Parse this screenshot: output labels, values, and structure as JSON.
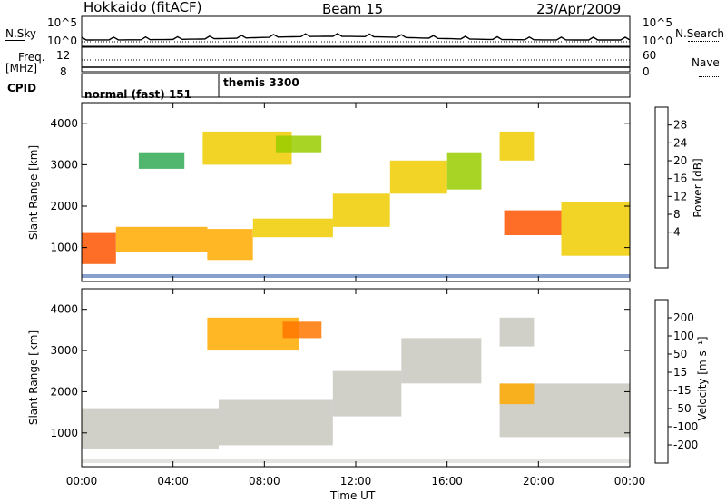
{
  "header": {
    "station": "Hokkaido (fitACF)",
    "beam": "Beam 15",
    "date": "23/Apr/2009"
  },
  "summary": {
    "nsky_label": "N.Sky",
    "nsky_ticks": [
      "10^5",
      "10^0"
    ],
    "nsearch_label": "N.Search",
    "nsearch_ticks": [
      "10^5",
      "10^0"
    ],
    "freq_label": "Freq.",
    "freq_unit": "[MHz]",
    "freq_ticks": [
      "12",
      "8"
    ],
    "nave_label": "Nave",
    "nave_ticks": [
      "60",
      "0"
    ],
    "cpid_label": "CPID",
    "cpid_segments": [
      {
        "label": "normal (fast) 151",
        "start_hour": 0,
        "end_hour": 6
      },
      {
        "label": "themis 3300",
        "start_hour": 6,
        "end_hour": 24
      }
    ]
  },
  "axes": {
    "xlabel": "Time UT",
    "xticks": [
      "00:00",
      "04:00",
      "08:00",
      "12:00",
      "16:00",
      "20:00",
      "00:00"
    ],
    "xlim_hours": [
      0,
      24
    ],
    "ylabel": "Slant Range [km]",
    "yticks": [
      1000,
      2000,
      3000,
      4000
    ],
    "ylim_km": [
      180,
      4500
    ]
  },
  "colorbars": {
    "power": {
      "label": "Power [dB]",
      "ticks": [
        "28",
        "24",
        "20",
        "16",
        "12",
        "8",
        "4"
      ],
      "colors": [
        "#ee0000",
        "#ff5500",
        "#ffaa00",
        "#eecc00",
        "#99cc00",
        "#33aa55",
        "#1f7f6a",
        "#114499",
        "#0000ff"
      ]
    },
    "velocity": {
      "label": "Velocity [m s⁻¹]",
      "ticks": [
        "200",
        "100",
        "50",
        "15",
        "-15",
        "-50",
        "-100",
        "-200"
      ],
      "colors": [
        "#0000cc",
        "#3366aa",
        "#117744",
        "#55cc22",
        "#c8c8c0",
        "#ffaa00",
        "#ff7700",
        "#ff3300",
        "#ee0000"
      ]
    }
  },
  "chart_data": [
    {
      "type": "heatmap",
      "name": "Power",
      "xlabel": "Time UT",
      "ylabel": "Slant Range [km]",
      "xlim": [
        0,
        24
      ],
      "ylim": [
        180,
        4500
      ],
      "bands": [
        {
          "t0": 0.0,
          "t1": 1.5,
          "r0": 600,
          "r1": 1350,
          "db": 26
        },
        {
          "t0": 1.5,
          "t1": 5.5,
          "r0": 900,
          "r1": 1500,
          "db": 24
        },
        {
          "t0": 5.5,
          "t1": 7.5,
          "r0": 700,
          "r1": 1450,
          "db": 22
        },
        {
          "t0": 7.5,
          "t1": 11.0,
          "r0": 1250,
          "r1": 1700,
          "db": 21
        },
        {
          "t0": 11.0,
          "t1": 13.5,
          "r0": 1500,
          "r1": 2300,
          "db": 18
        },
        {
          "t0": 13.5,
          "t1": 16.0,
          "r0": 2300,
          "r1": 3100,
          "db": 18
        },
        {
          "t0": 16.0,
          "t1": 17.5,
          "r0": 2400,
          "r1": 3300,
          "db": 16
        },
        {
          "t0": 18.5,
          "t1": 21.0,
          "r0": 1300,
          "r1": 1900,
          "db": 26
        },
        {
          "t0": 21.0,
          "t1": 24.0,
          "r0": 800,
          "r1": 2100,
          "db": 18
        },
        {
          "t0": 5.3,
          "t1": 9.2,
          "r0": 3000,
          "r1": 3800,
          "db": 20
        },
        {
          "t0": 8.5,
          "t1": 10.5,
          "r0": 3300,
          "r1": 3700,
          "db": 16
        },
        {
          "t0": 18.3,
          "t1": 19.8,
          "r0": 3100,
          "r1": 3800,
          "db": 20
        },
        {
          "t0": 2.5,
          "t1": 4.5,
          "r0": 2900,
          "r1": 3300,
          "db": 14
        }
      ]
    },
    {
      "type": "heatmap",
      "name": "Velocity",
      "xlabel": "Time UT",
      "ylabel": "Slant Range [km]",
      "xlim": [
        0,
        24
      ],
      "ylim": [
        180,
        4500
      ],
      "bands": [
        {
          "t0": 0.0,
          "t1": 6.0,
          "r0": 600,
          "r1": 1600,
          "v": 0
        },
        {
          "t0": 6.0,
          "t1": 11.0,
          "r0": 700,
          "r1": 1800,
          "v": 0
        },
        {
          "t0": 11.0,
          "t1": 14.0,
          "r0": 1400,
          "r1": 2500,
          "v": 0
        },
        {
          "t0": 14.0,
          "t1": 17.5,
          "r0": 2200,
          "r1": 3300,
          "v": 0
        },
        {
          "t0": 18.3,
          "t1": 24.0,
          "r0": 900,
          "r1": 2200,
          "v": 0
        },
        {
          "t0": 18.3,
          "t1": 19.8,
          "r0": 1700,
          "r1": 2200,
          "v": -30
        },
        {
          "t0": 5.5,
          "t1": 9.5,
          "r0": 3000,
          "r1": 3800,
          "v": -40
        },
        {
          "t0": 8.8,
          "t1": 10.5,
          "r0": 3300,
          "r1": 3700,
          "v": -60
        },
        {
          "t0": 18.3,
          "t1": 19.8,
          "r0": 3100,
          "r1": 3800,
          "v": 0
        }
      ]
    }
  ]
}
